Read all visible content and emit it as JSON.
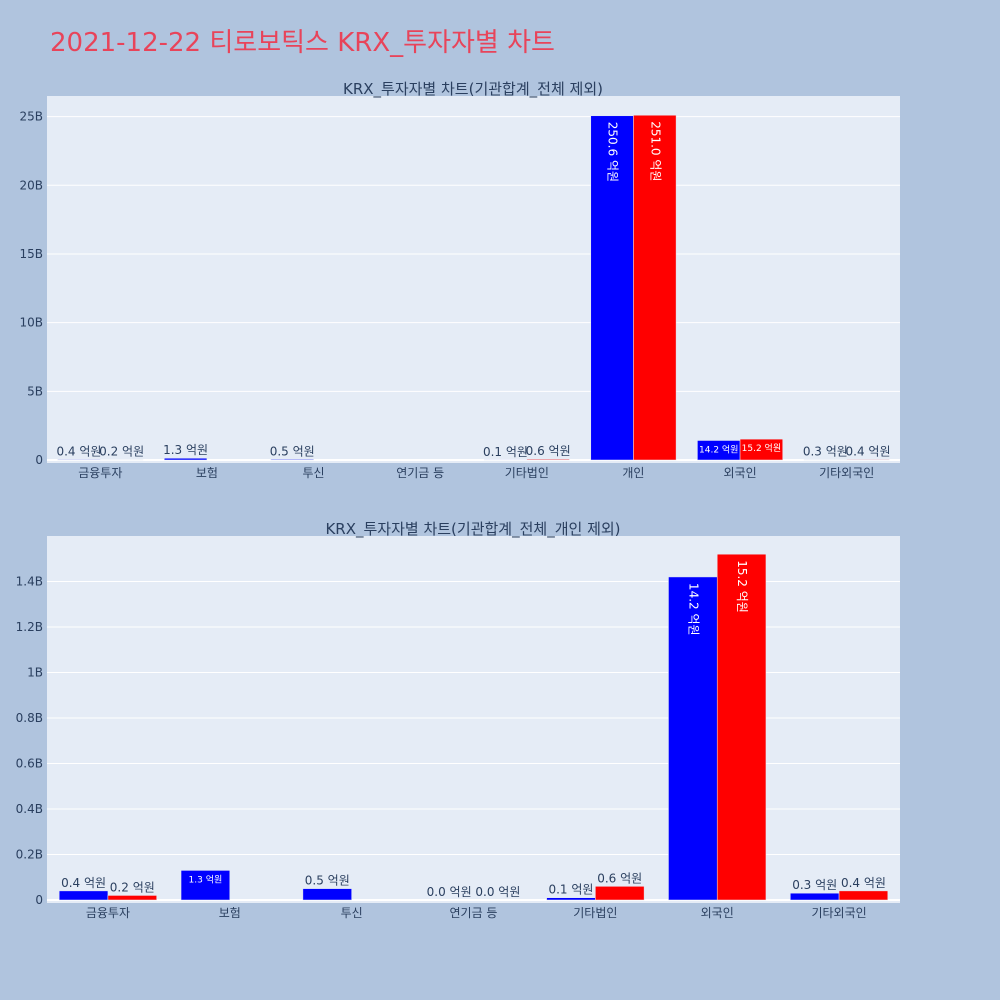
{
  "page_title": "2021-12-22 티로보틱스 KRX_투자자별 차트",
  "colors": {
    "background": "#b0c4de",
    "plot_bg": "#e5ecf6",
    "series_a": "#0000ff",
    "series_b": "#ff0000",
    "title": "#e8445a",
    "text": "#2a3f5f"
  },
  "chart_data": [
    {
      "type": "bar",
      "title": "KRX_투자자별 차트(기관합계_전체 제외)",
      "categories": [
        "금융투자",
        "보험",
        "투신",
        "연기금 등",
        "기타법인",
        "개인",
        "외국인",
        "기타외국인"
      ],
      "ylim": [
        0,
        26500000000
      ],
      "yticks": [
        0,
        5000000000,
        10000000000,
        15000000000,
        20000000000,
        25000000000
      ],
      "ytick_labels": [
        "0",
        "5B",
        "10B",
        "15B",
        "20B",
        "25B"
      ],
      "grid": true,
      "series": [
        {
          "color": "#0000ff",
          "values": [
            40000000,
            130000000,
            50000000,
            null,
            10000000,
            25060000000,
            1420000000,
            30000000
          ],
          "labels": [
            "0.4 억원",
            "1.3 억원",
            "0.5 억원",
            "",
            "0.1 억원",
            "250.6 억원",
            "14.2 억원",
            "0.3 억원"
          ]
        },
        {
          "color": "#ff0000",
          "values": [
            20000000,
            null,
            null,
            null,
            60000000,
            25100000000,
            1520000000,
            40000000
          ],
          "labels": [
            "0.2 억원",
            "",
            "",
            "",
            "0.6 억원",
            "251.0 억원",
            "15.2 억원",
            "0.4 억원"
          ]
        }
      ]
    },
    {
      "type": "bar",
      "title": "KRX_투자자별 차트(기관합계_전체_개인 제외)",
      "categories": [
        "금융투자",
        "보험",
        "투신",
        "연기금 등",
        "기타법인",
        "외국인",
        "기타외국인"
      ],
      "ylim": [
        0,
        1600000000
      ],
      "yticks": [
        0,
        200000000,
        400000000,
        600000000,
        800000000,
        1000000000,
        1200000000,
        1400000000
      ],
      "ytick_labels": [
        "0",
        "0.2B",
        "0.4B",
        "0.6B",
        "0.8B",
        "1B",
        "1.2B",
        "1.4B"
      ],
      "grid": true,
      "series": [
        {
          "color": "#0000ff",
          "values": [
            40000000,
            130000000,
            50000000,
            0,
            10000000,
            1420000000,
            30000000
          ],
          "labels": [
            "0.4 억원",
            "1.3 억원",
            "0.5 억원",
            "0.0 억원",
            "0.1 억원",
            "14.2 억원",
            "0.3 억원"
          ]
        },
        {
          "color": "#ff0000",
          "values": [
            20000000,
            null,
            null,
            0,
            60000000,
            1520000000,
            40000000
          ],
          "labels": [
            "0.2 억원",
            "",
            "",
            "0.0 억원",
            "0.6 억원",
            "15.2 억원",
            "0.4 억원"
          ]
        }
      ]
    }
  ]
}
